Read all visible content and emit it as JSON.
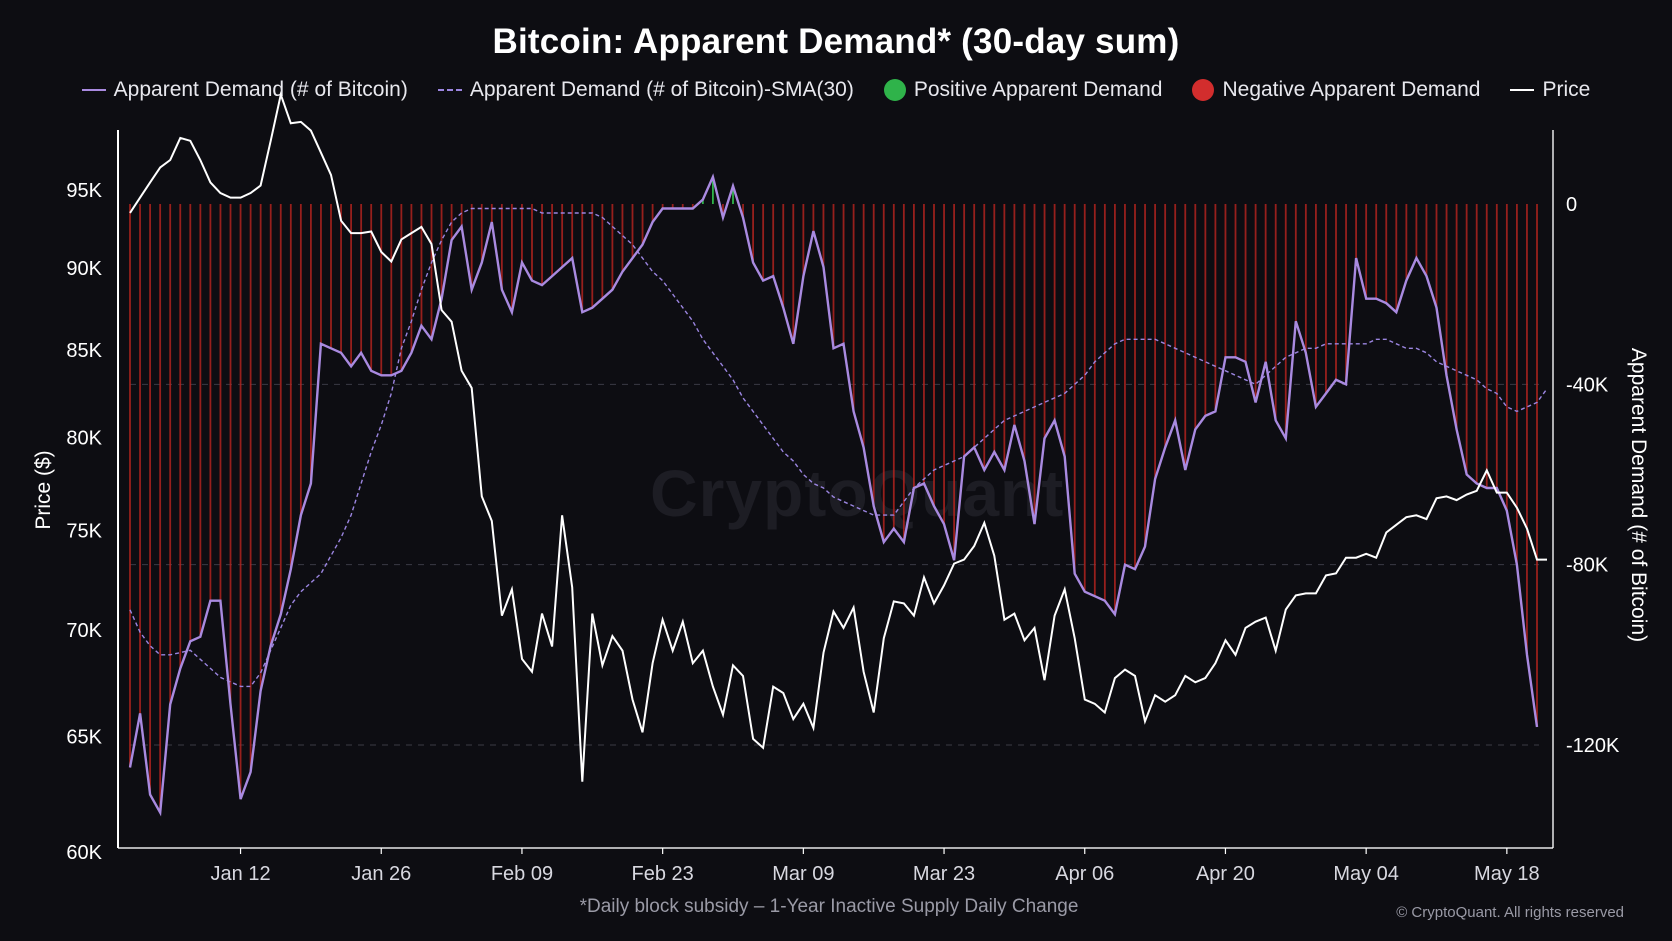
{
  "title": "Bitcoin: Apparent Demand* (30-day sum)",
  "legend": [
    {
      "label": "Apparent Demand (# of Bitcoin)",
      "color": "#a98ae0",
      "style": "line"
    },
    {
      "label": "Apparent Demand (# of Bitcoin)-SMA(30)",
      "color": "#9b85e0",
      "style": "dashed"
    },
    {
      "label": "Positive Apparent Demand",
      "color": "#2fb34a",
      "style": "dot"
    },
    {
      "label": "Negative Apparent Demand",
      "color": "#d22d2d",
      "style": "dot"
    },
    {
      "label": "Price",
      "color": "#ffffff",
      "style": "line"
    }
  ],
  "footnote": "*Daily block subsidy – 1-Year Inactive Supply Daily Change",
  "copyright": "© CryptoQuant. All rights reserved",
  "watermark": "CryptoQuant",
  "chart_data": {
    "type": "line",
    "title": "Bitcoin: Apparent Demand* (30-day sum)",
    "x_ticks": [
      "Jan 12",
      "Jan 26",
      "Feb 09",
      "Feb 23",
      "Mar 09",
      "Mar 23",
      "Apr 06",
      "Apr 20",
      "May 04",
      "May 18"
    ],
    "x_start": "Jan 1",
    "x_end": "May 21",
    "left_axis": {
      "label": "Price ($)",
      "ticks": [
        "95K",
        "90K",
        "85K",
        "80K",
        "75K",
        "70K",
        "65K",
        "60K"
      ],
      "range": [
        60000,
        97500
      ],
      "scale": "log"
    },
    "right_axis": {
      "label": "Apparent Demand (# of Bitcoin)",
      "ticks": [
        "0",
        "-40K",
        "-80K",
        "-120K"
      ],
      "range": [
        -143000,
        16000
      ]
    },
    "grid": "dashed horizontal at right-axis ticks",
    "series": [
      {
        "name": "Apparent Demand (# of Bitcoin)",
        "axis": "right",
        "color": "#a98ae0",
        "values": [
          -125000,
          -113000,
          -131000,
          -135000,
          -111000,
          -103000,
          -97000,
          -96000,
          -88000,
          -88000,
          -111000,
          -132000,
          -126000,
          -108000,
          -98000,
          -91000,
          -81000,
          -69000,
          -62000,
          -31000,
          -32000,
          -33000,
          -36000,
          -33000,
          -37000,
          -38000,
          -38000,
          -37000,
          -33000,
          -27000,
          -30000,
          -21000,
          -8000,
          -5000,
          -19000,
          -13000,
          -4000,
          -19000,
          -24000,
          -13000,
          -17000,
          -18000,
          -16000,
          -14000,
          -12000,
          -24000,
          -23000,
          -21000,
          -19000,
          -15000,
          -12000,
          -9000,
          -4000,
          -1000,
          -1000,
          -1000,
          -1000,
          1000,
          6000,
          -3000,
          4000,
          -3000,
          -13000,
          -17000,
          -16000,
          -23000,
          -31000,
          -16000,
          -6000,
          -14000,
          -32000,
          -31000,
          -46000,
          -54000,
          -67000,
          -75000,
          -72000,
          -75000,
          -63000,
          -62000,
          -67000,
          -71000,
          -79000,
          -56000,
          -54000,
          -59000,
          -55000,
          -59000,
          -49000,
          -57000,
          -71000,
          -52000,
          -48000,
          -56000,
          -82000,
          -86000,
          -87000,
          -88000,
          -91000,
          -80000,
          -81000,
          -76000,
          -61000,
          -54000,
          -48000,
          -59000,
          -50000,
          -47000,
          -46000,
          -34000,
          -34000,
          -35000,
          -44000,
          -35000,
          -48000,
          -52000,
          -26000,
          -33000,
          -45000,
          -42000,
          -39000,
          -40000,
          -12000,
          -21000,
          -21000,
          -22000,
          -24000,
          -17000,
          -12000,
          -16000,
          -23000,
          -38000,
          -50000,
          -60000,
          -62000,
          -63000,
          -63000,
          -68000,
          -80000,
          -100000,
          -116000
        ]
      },
      {
        "name": "Apparent Demand (# of Bitcoin)-SMA(30)",
        "axis": "right",
        "color": "#9b85e0",
        "dashed": true,
        "values": [
          -90000,
          -95000,
          -98000,
          -100000,
          -100000,
          -99500,
          -99000,
          -101000,
          -103000,
          -105000,
          -106000,
          -107000,
          -107000,
          -104000,
          -99000,
          -94000,
          -89000,
          -86000,
          -84000,
          -82000,
          -78000,
          -74000,
          -69000,
          -62000,
          -55000,
          -49000,
          -42000,
          -32000,
          -26000,
          -19000,
          -13000,
          -8000,
          -4000,
          -2000,
          -1000,
          -1000,
          -1000,
          -1000,
          -1000,
          -1000,
          -1000,
          -2000,
          -2000,
          -2000,
          -2000,
          -2000,
          -2000,
          -3000,
          -5000,
          -7000,
          -9000,
          -12000,
          -15000,
          -17000,
          -20000,
          -23000,
          -26000,
          -30000,
          -33000,
          -36000,
          -39000,
          -43000,
          -46000,
          -49000,
          -52000,
          -55000,
          -57000,
          -60000,
          -62000,
          -63000,
          -65000,
          -66000,
          -67000,
          -68000,
          -69000,
          -69000,
          -69000,
          -66000,
          -63000,
          -61000,
          -59000,
          -58000,
          -57000,
          -56000,
          -54000,
          -52000,
          -50000,
          -48000,
          -47000,
          -46000,
          -45000,
          -44000,
          -43000,
          -42000,
          -40000,
          -38000,
          -35000,
          -33000,
          -31000,
          -30000,
          -30000,
          -30000,
          -30000,
          -31000,
          -32000,
          -33000,
          -34000,
          -35000,
          -36000,
          -37000,
          -38000,
          -39000,
          -40000,
          -38000,
          -36000,
          -34000,
          -33000,
          -32000,
          -32000,
          -31000,
          -31000,
          -31000,
          -31000,
          -31000,
          -30000,
          -30000,
          -31000,
          -32000,
          -32000,
          -33000,
          -35000,
          -36000,
          -37000,
          -38000,
          -39000,
          -41000,
          -42000,
          -45000,
          -46000,
          -45000,
          -44000,
          -41000
        ]
      },
      {
        "name": "Price",
        "axis": "left",
        "color": "#ffffff",
        "values": [
          93500,
          94500,
          95500,
          96500,
          97000,
          98500,
          98300,
          97000,
          95500,
          94800,
          94500,
          94500,
          94800,
          95300,
          98300,
          101500,
          99500,
          99600,
          99000,
          97500,
          96000,
          93000,
          92200,
          92200,
          92300,
          91000,
          90400,
          91800,
          92200,
          92600,
          91500,
          87400,
          86700,
          83800,
          82800,
          76800,
          75500,
          70700,
          72000,
          68600,
          68000,
          70800,
          69200,
          75800,
          72100,
          63000,
          70800,
          68300,
          69700,
          69000,
          66700,
          65200,
          68400,
          70500,
          69000,
          70400,
          68400,
          69000,
          67300,
          66000,
          68300,
          67800,
          64900,
          64500,
          67300,
          67000,
          65800,
          66500,
          65400,
          68900,
          70900,
          70100,
          71100,
          68000,
          66100,
          69600,
          71400,
          71300,
          70700,
          72600,
          71300,
          72200,
          73300,
          73500,
          74200,
          75400,
          73700,
          70500,
          70800,
          69500,
          70100,
          67600,
          70700,
          72000,
          69600,
          66700,
          66500,
          66100,
          67700,
          68100,
          67800,
          65700,
          66900,
          66600,
          66900,
          67800,
          67500,
          67700,
          68400,
          69500,
          68800,
          70100,
          70400,
          70600,
          69000,
          71000,
          71700,
          71800,
          71800,
          72700,
          72800,
          73600,
          73600,
          73800,
          73600,
          74900,
          75300,
          75700,
          75800,
          75600,
          76700,
          76800,
          76600,
          76900,
          77100,
          78200,
          77000,
          77000,
          76200,
          75100,
          73500,
          73500
        ]
      }
    ]
  }
}
